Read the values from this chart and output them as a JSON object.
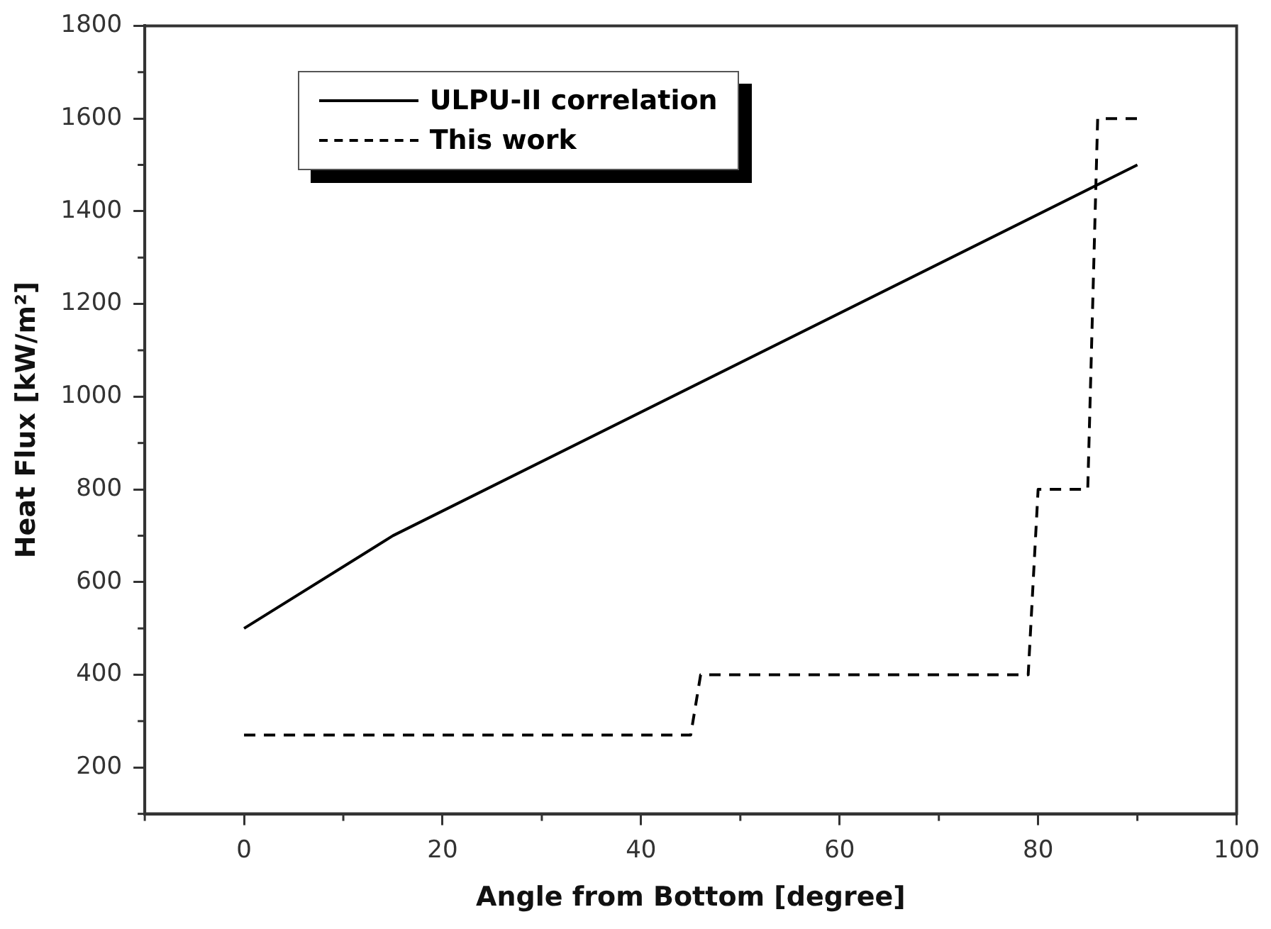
{
  "chart_data": {
    "type": "line",
    "xlabel": "Angle from Bottom [degree]",
    "ylabel": "Heat Flux [kW/m²]",
    "xlim": [
      -10,
      100
    ],
    "xticks": [
      0,
      20,
      40,
      60,
      80,
      100
    ],
    "ylim": [
      100,
      1800
    ],
    "yticks": [
      200,
      400,
      600,
      800,
      1000,
      1200,
      1400,
      1600,
      1800
    ],
    "grid": false,
    "legend": "top left",
    "marker": "none",
    "series": [
      {
        "name": "ULPU-II correlation",
        "color": "#000000",
        "line_style": "solid",
        "x": [
          0,
          15,
          90
        ],
        "values": [
          500,
          700,
          1500
        ]
      },
      {
        "name": "This work",
        "color": "#000000",
        "line_style": "dashed",
        "x": [
          0,
          45,
          46,
          79,
          80,
          85,
          86,
          90
        ],
        "values": [
          270,
          270,
          400,
          400,
          800,
          800,
          1600,
          1600
        ]
      }
    ]
  }
}
